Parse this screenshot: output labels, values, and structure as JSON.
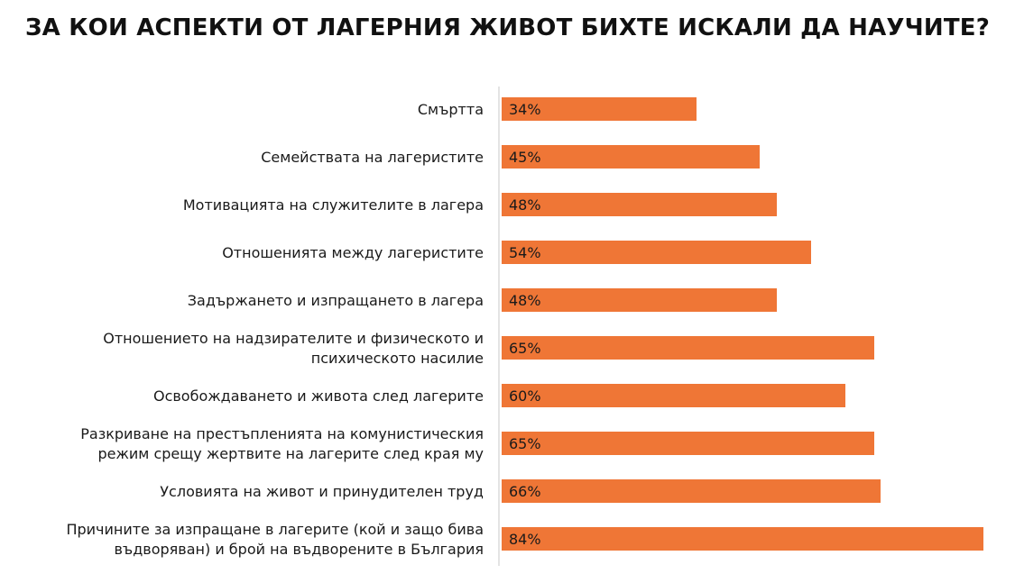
{
  "chart_data": {
    "type": "bar",
    "orientation": "horizontal",
    "title": "ЗА КОИ АСПЕКТИ ОТ ЛАГЕРНИЯ ЖИВОТ БИХТЕ ИСКАЛИ ДА НАУЧИТЕ?",
    "categories": [
      [
        "Смъртта"
      ],
      [
        "Семействата на лагеристите"
      ],
      [
        "Мотивацията на служителите в лагера"
      ],
      [
        "Отношенията между лагеристите"
      ],
      [
        "Задържането и изпращането в лагера"
      ],
      [
        "Отношението на надзирателите и физическото и",
        "психическото насилие"
      ],
      [
        "Освобождаването и живота след лагерите"
      ],
      [
        "Разкриване на престъпленията на комунистическия",
        "режим срещу жертвите на лагерите след края му"
      ],
      [
        "Условията на живот и принудителен труд"
      ],
      [
        "Причините за изпращане в лагерите (кой и защо бива",
        "въдворяван) и брой на въдворените в България"
      ]
    ],
    "values": [
      34,
      45,
      48,
      54,
      48,
      65,
      60,
      65,
      66,
      84
    ],
    "value_labels": [
      "34%",
      "45%",
      "48%",
      "54%",
      "48%",
      "65%",
      "60%",
      "65%",
      "66%",
      "84%"
    ],
    "unit": "%",
    "xlim": [
      0,
      84
    ],
    "grid": false,
    "legend": "none",
    "colors": {
      "bar": "#ef7636",
      "axis": "#c8c8c8",
      "text": "#1a1a1a"
    }
  }
}
